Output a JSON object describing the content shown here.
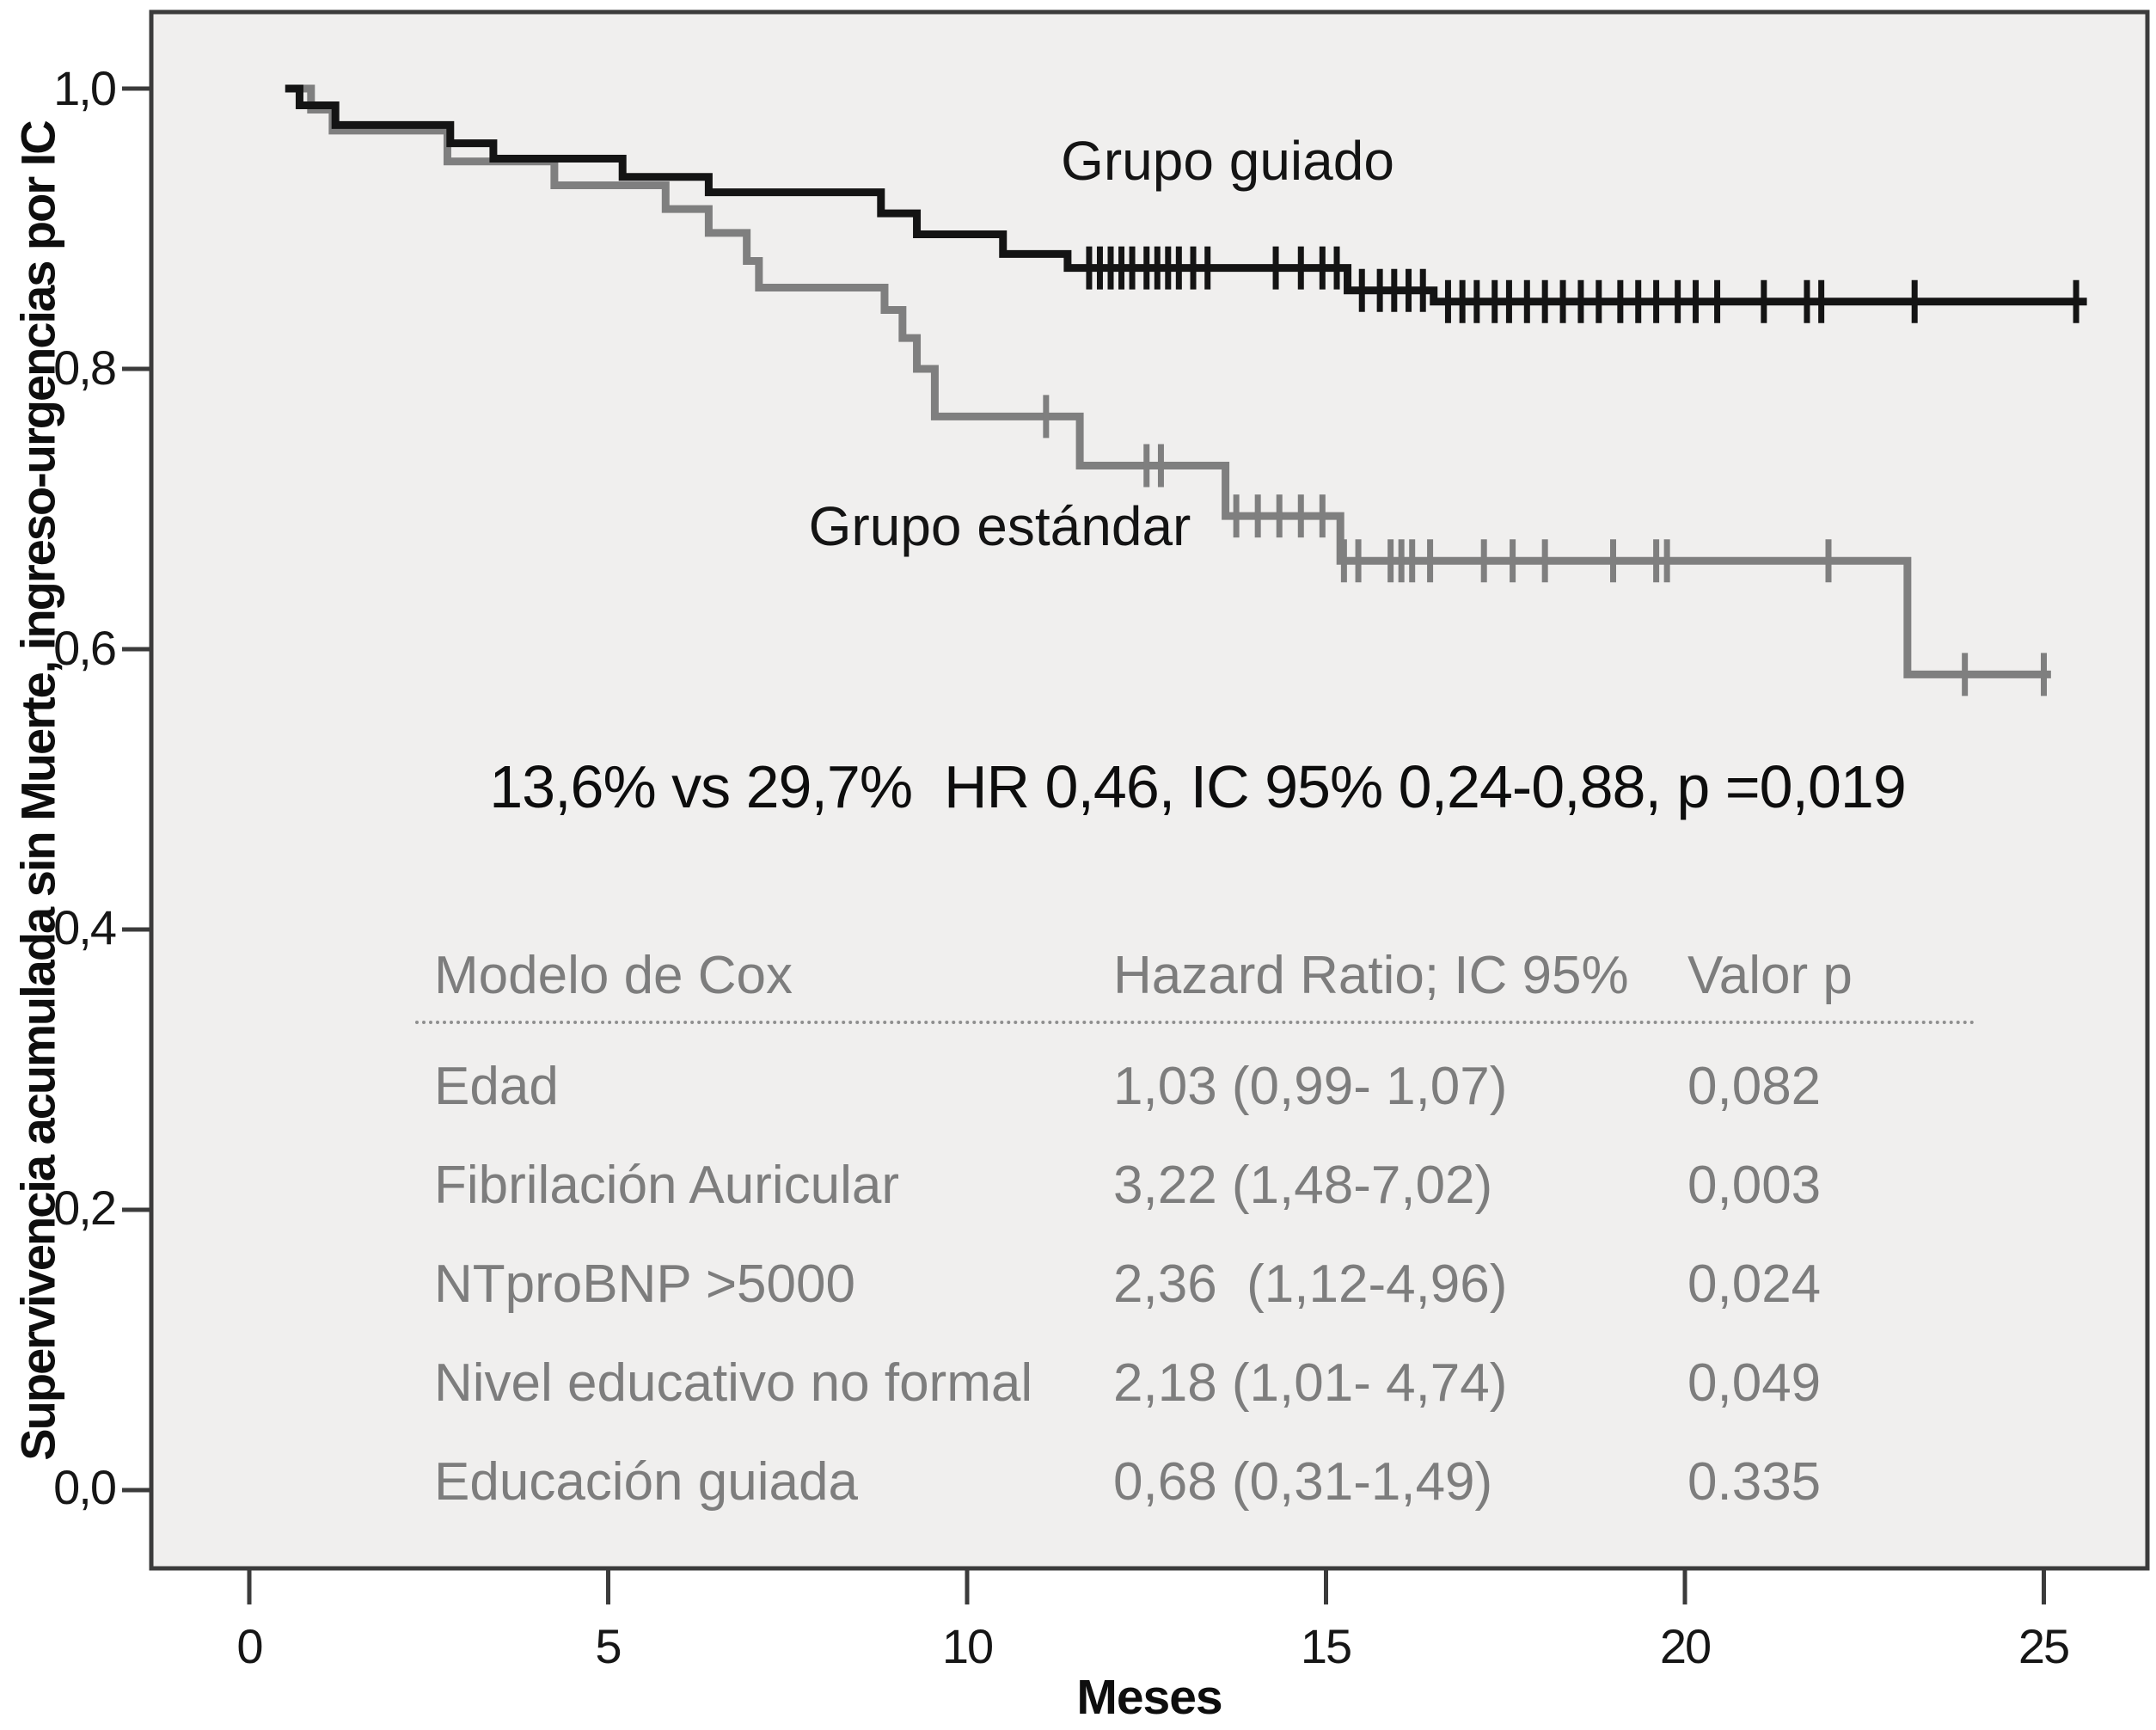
{
  "figure": {
    "y_axis": {
      "title": "Supervivencia acumulada sin Muerte, ingreso-urgencias por IC",
      "tick_labels": [
        "1,0",
        "0,8",
        "0,6",
        "0,4",
        "0,2",
        "0,0"
      ],
      "tick_values": [
        1.0,
        0.8,
        0.6,
        0.4,
        0.2,
        0.0
      ]
    },
    "x_axis": {
      "title": "Meses",
      "tick_labels": [
        "0",
        "5",
        "10",
        "15",
        "20",
        "25"
      ],
      "tick_values": [
        0,
        5,
        10,
        15,
        20,
        25
      ]
    },
    "curve_labels": {
      "guided": "Grupo guiado",
      "standard": "Grupo estándar"
    },
    "annotation": "13,6% vs 29,7%  HR 0,46, IC 95% 0,24-0,88, p =0,019"
  },
  "cox_table": {
    "header": {
      "model": "Modelo de Cox",
      "hr": "Hazard Ratio; IC 95%",
      "p": "Valor p"
    },
    "rows": [
      {
        "variable": "Edad",
        "hr": "1,03 (0,99- 1,07)",
        "p": "0,082"
      },
      {
        "variable": "Fibrilación Auricular",
        "hr": "3,22 (1,48-7,02)",
        "p": "0,003"
      },
      {
        "variable": "NTproBNP >5000",
        "hr": "2,36  (1,12-4,96)",
        "p": "0,024"
      },
      {
        "variable": "Nivel educativo no formal",
        "hr": "2,18 (1,01- 4,74)",
        "p": "0,049"
      },
      {
        "variable": "Educación guiada",
        "hr": "0,68 (0,31-1,49)",
        "p": "0.335"
      }
    ]
  },
  "chart_data": {
    "type": "line",
    "subtype": "kaplan-meier-step",
    "title": "",
    "xlabel": "Meses",
    "ylabel": "Supervivencia acumulada sin Muerte, ingreso-urgencias por IC",
    "xlim": [
      0,
      25.8
    ],
    "ylim": [
      0.0,
      1.0
    ],
    "grid": false,
    "legend_position": "inline-labels",
    "plot_background": "#f0efee",
    "series": [
      {
        "name": "Grupo estándar",
        "color": "#7f7f7f",
        "start": [
          0.55,
          1.0
        ],
        "steps": [
          [
            0.86,
            0.985
          ],
          [
            1.16,
            0.97
          ],
          [
            2.76,
            0.948
          ],
          [
            4.25,
            0.931
          ],
          [
            5.8,
            0.914
          ],
          [
            6.4,
            0.897
          ],
          [
            6.93,
            0.877
          ],
          [
            7.1,
            0.858
          ],
          [
            8.85,
            0.842
          ],
          [
            9.1,
            0.822
          ],
          [
            9.3,
            0.8
          ],
          [
            9.55,
            0.766
          ],
          [
            11.57,
            0.731
          ],
          [
            13.6,
            0.695
          ],
          [
            15.2,
            0.663
          ],
          [
            23.1,
            0.582
          ]
        ],
        "end": 25.1,
        "censor_times": [
          11.1,
          12.5,
          12.7,
          13.75,
          14.05,
          14.35,
          14.65,
          14.95,
          15.25,
          15.45,
          15.9,
          16.05,
          16.2,
          16.45,
          17.2,
          17.6,
          18.05,
          19.0,
          19.6,
          19.75,
          22.0,
          23.9,
          25.0
        ]
      },
      {
        "name": "Grupo guiado",
        "color": "#141414",
        "start": [
          0.5,
          1.0
        ],
        "steps": [
          [
            0.7,
            0.988
          ],
          [
            1.2,
            0.974
          ],
          [
            2.8,
            0.961
          ],
          [
            3.4,
            0.95
          ],
          [
            5.2,
            0.937
          ],
          [
            6.4,
            0.926
          ],
          [
            8.8,
            0.911
          ],
          [
            9.3,
            0.896
          ],
          [
            10.5,
            0.882
          ],
          [
            11.4,
            0.872
          ],
          [
            15.3,
            0.856
          ],
          [
            16.5,
            0.848
          ]
        ],
        "end": 25.6,
        "censor_times": [
          11.7,
          11.85,
          12.0,
          12.15,
          12.3,
          12.5,
          12.65,
          12.8,
          12.95,
          13.15,
          13.35,
          14.3,
          14.65,
          14.95,
          15.15,
          15.5,
          15.75,
          15.95,
          16.15,
          16.35,
          16.7,
          16.9,
          17.1,
          17.35,
          17.55,
          17.8,
          18.05,
          18.3,
          18.55,
          18.8,
          19.1,
          19.35,
          19.6,
          19.9,
          20.15,
          20.45,
          21.1,
          21.7,
          21.9,
          23.2,
          25.45
        ]
      }
    ]
  }
}
